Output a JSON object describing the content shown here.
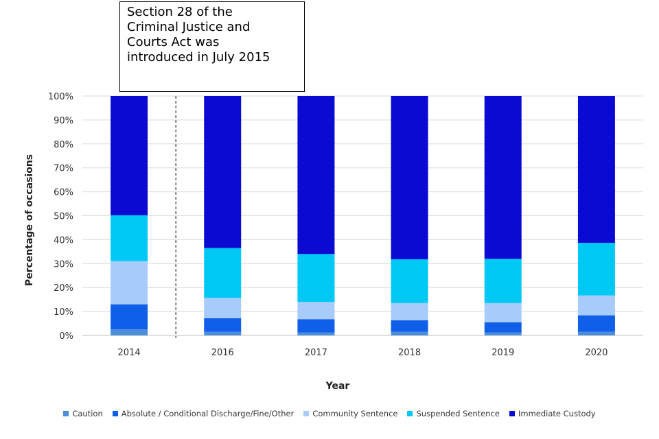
{
  "annotation": {
    "lines": [
      "Section 28 of the",
      "Criminal Justice and",
      "Courts Act was",
      "introduced in July 2015"
    ]
  },
  "chart_data": {
    "type": "bar",
    "stacked": true,
    "categories": [
      "2014",
      "2016",
      "2017",
      "2018",
      "2019",
      "2020"
    ],
    "xlabel": "Year",
    "ylabel": "Percentage of occasions",
    "ylim": [
      0,
      100
    ],
    "yticks": [
      "0%",
      "10%",
      "20%",
      "30%",
      "40%",
      "50%",
      "60%",
      "70%",
      "80%",
      "90%",
      "100%"
    ],
    "grid": true,
    "legend_position": "bottom",
    "reference_line_after_category": "2014",
    "series": [
      {
        "name": "Caution",
        "color": "#4a8fd8",
        "values": [
          2.5,
          1.5,
          1.2,
          1.5,
          1.2,
          1.5
        ]
      },
      {
        "name": "Absolute / Conditional Discharge/Fine/Other",
        "color": "#0f5fe8",
        "values": [
          10.5,
          5.7,
          5.6,
          4.8,
          4.3,
          6.9
        ]
      },
      {
        "name": "Community Sentence",
        "color": "#a7cbfa",
        "values": [
          18,
          8.5,
          7.2,
          7.2,
          8,
          8.3
        ]
      },
      {
        "name": "Suspended Sentence",
        "color": "#00c8f5",
        "values": [
          19.2,
          20.8,
          20,
          18.3,
          18.5,
          22
        ]
      },
      {
        "name": "Immediate Custody",
        "color": "#0a0ad2",
        "values": [
          49.8,
          63.5,
          66,
          68.2,
          68,
          61.3
        ]
      }
    ]
  }
}
